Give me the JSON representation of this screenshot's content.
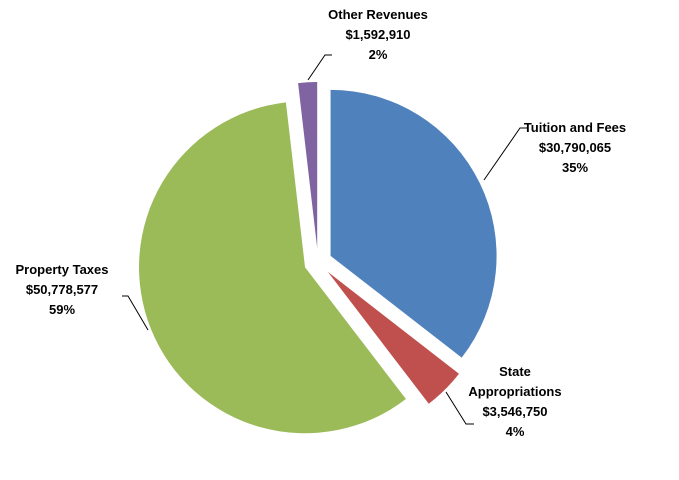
{
  "chart_data": {
    "type": "pie",
    "categories": [
      "Tuition and Fees",
      "State Appropriations",
      "Property Taxes",
      "Other Revenues"
    ],
    "values": [
      30790065,
      3546750,
      50778577,
      1592910
    ],
    "value_labels": [
      "$30,790,065",
      "$3,546,750",
      "$50,778,577",
      "$1,592,910"
    ],
    "percentages": [
      35,
      4,
      59,
      2
    ],
    "percentage_labels": [
      "35%",
      "4%",
      "59%",
      "2%"
    ],
    "colors": [
      "#4f81bd",
      "#c0504d",
      "#9bbb59",
      "#8064a2"
    ],
    "start_angle": "top",
    "direction": "clockwise",
    "exploded": true
  }
}
